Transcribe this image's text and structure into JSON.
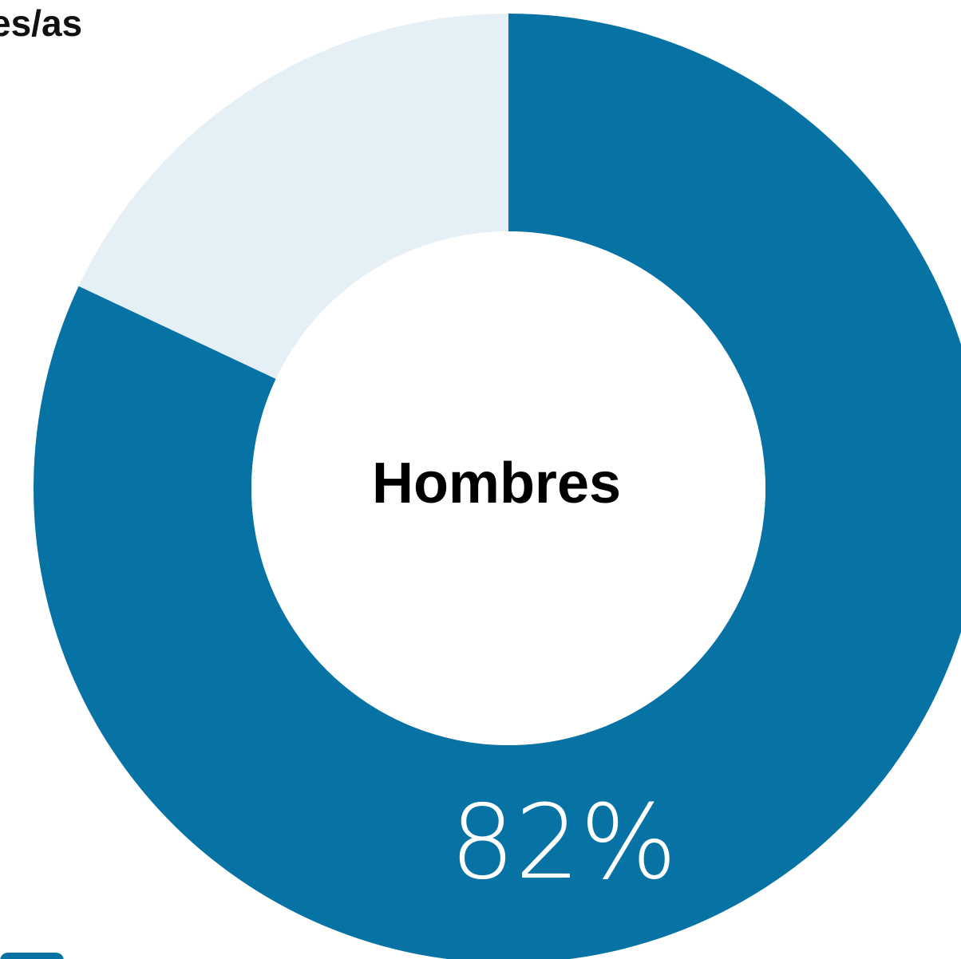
{
  "heading_fragment": "es/as",
  "colors": {
    "primary": "#0773a5",
    "remainder": "#e4f0f5",
    "background": "#ffffff",
    "center_text": "#000000",
    "value_text": "#ffffff"
  },
  "chart_data": {
    "type": "pie",
    "categories": [
      "Hombres",
      ""
    ],
    "values": [
      82,
      18
    ],
    "center_label": "Hombres",
    "value_label": "82%",
    "donut": true
  }
}
